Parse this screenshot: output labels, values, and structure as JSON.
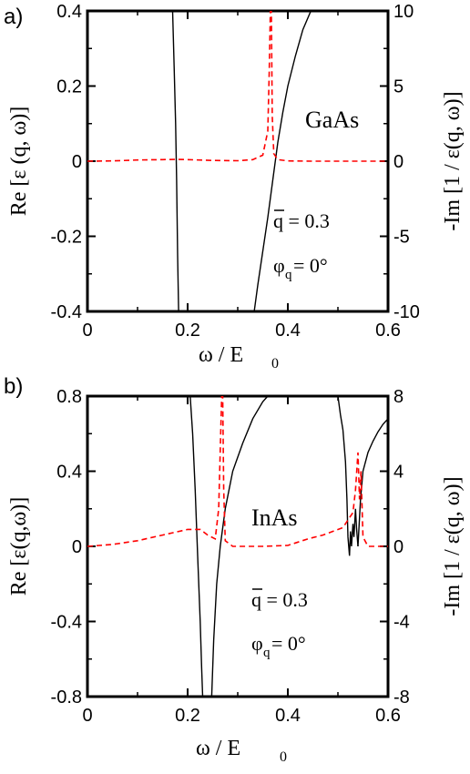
{
  "chart_data": [
    {
      "type": "line",
      "panel_label": "a)",
      "material": "GaAs",
      "xlabel": "ω / E",
      "xlabel_sub": "0",
      "ylabel_left": "Re [ε (q, ω)]",
      "ylabel_right": "-Im [1 / ε(q, ω)]",
      "annotation_q": "q = 0.3",
      "annotation_q_bar": "q",
      "annotation_phi": "φ",
      "annotation_phi_sub": "q",
      "annotation_phi_val": " = 0°",
      "xlim": [
        0,
        0.6
      ],
      "ylim_left": [
        -0.4,
        0.4
      ],
      "ylim_right": [
        -10,
        10
      ],
      "x_ticks": [
        "0",
        "0.2",
        "0.4",
        "0.6"
      ],
      "y_ticks_left": [
        "-0.4",
        "-0.2",
        "0",
        "0.2",
        "0.4"
      ],
      "y_ticks_right": [
        "-10",
        "-5",
        "0",
        "5",
        "10"
      ],
      "x_tick_values": [
        0,
        0.2,
        0.4,
        0.6
      ],
      "y_tick_values_left": [
        -0.4,
        -0.2,
        0,
        0.2,
        0.4
      ],
      "y_tick_values_right": [
        -10,
        -5,
        0,
        5,
        10
      ],
      "series": [
        {
          "axis": "left",
          "color": "#000000",
          "dashed": false,
          "x": [
            0.17,
            0.173,
            0.176,
            0.178,
            0.18,
            0.182
          ],
          "y": [
            0.4,
            0.25,
            0.1,
            -0.05,
            -0.25,
            -0.4
          ]
        },
        {
          "axis": "left",
          "color": "#000000",
          "dashed": false,
          "x": [
            0.333,
            0.34,
            0.35,
            0.36,
            0.37,
            0.38,
            0.39,
            0.4,
            0.415,
            0.43,
            0.446
          ],
          "y": [
            -0.4,
            -0.33,
            -0.24,
            -0.15,
            -0.05,
            0.05,
            0.13,
            0.2,
            0.28,
            0.35,
            0.4
          ]
        },
        {
          "axis": "right",
          "color": "#ff0000",
          "dashed": true,
          "x": [
            0.0,
            0.05,
            0.1,
            0.15,
            0.18,
            0.2,
            0.25,
            0.3,
            0.33,
            0.35,
            0.36,
            0.363,
            0.365,
            0.367,
            0.369,
            0.372,
            0.38,
            0.4,
            0.45,
            0.5,
            0.55,
            0.6
          ],
          "y": [
            0.0,
            0.02,
            0.08,
            0.1,
            0.12,
            0.1,
            0.05,
            0.03,
            0.1,
            0.4,
            2.0,
            6.0,
            10.0,
            10.0,
            3.0,
            0.5,
            0.1,
            0.02,
            0.0,
            0.0,
            0.0,
            0.0
          ]
        }
      ]
    },
    {
      "type": "line",
      "panel_label": "b)",
      "material": "InAs",
      "xlabel": "ω  / E",
      "xlabel_sub": "0",
      "ylabel_left": "Re [ε(q,ω)]",
      "ylabel_right": "-Im [1 / ε(q, ω)]",
      "annotation_q": "q = 0.3",
      "annotation_q_bar": "q",
      "annotation_phi": "φ",
      "annotation_phi_sub": "q",
      "annotation_phi_val": " = 0°",
      "xlim": [
        0,
        0.6
      ],
      "ylim_left": [
        -0.8,
        0.8
      ],
      "ylim_right": [
        -8,
        8
      ],
      "x_ticks": [
        "0",
        "0.2",
        "0.4",
        "0.6"
      ],
      "y_ticks_left": [
        "-0.8",
        "-0.4",
        "0",
        "0.4",
        "0.8"
      ],
      "y_ticks_right": [
        "-8",
        "-4",
        "0",
        "4",
        "8"
      ],
      "x_tick_values": [
        0,
        0.2,
        0.4,
        0.6
      ],
      "y_tick_values_left": [
        -0.8,
        -0.4,
        0,
        0.4,
        0.8
      ],
      "y_tick_values_right": [
        -8,
        -4,
        0,
        4,
        8
      ],
      "series": [
        {
          "axis": "left",
          "color": "#000000",
          "dashed": false,
          "x": [
            0.205,
            0.21,
            0.215,
            0.22,
            0.225,
            0.228,
            0.23
          ],
          "y": [
            0.8,
            0.6,
            0.3,
            -0.05,
            -0.4,
            -0.65,
            -0.8
          ]
        },
        {
          "axis": "left",
          "color": "#000000",
          "dashed": false,
          "x": [
            0.248,
            0.252,
            0.258,
            0.265,
            0.275,
            0.29,
            0.31,
            0.33,
            0.35,
            0.36
          ],
          "y": [
            -0.8,
            -0.5,
            -0.2,
            0.0,
            0.2,
            0.4,
            0.55,
            0.68,
            0.77,
            0.8
          ]
        },
        {
          "axis": "left",
          "color": "#000000",
          "dashed": false,
          "x": [
            0.5,
            0.505,
            0.51,
            0.515,
            0.518,
            0.52,
            0.523,
            0.525,
            0.527,
            0.53,
            0.532,
            0.535,
            0.537,
            0.54
          ],
          "y": [
            0.8,
            0.7,
            0.62,
            0.45,
            0.25,
            0.05,
            -0.05,
            0.08,
            0.0,
            0.12,
            0.05,
            0.2,
            0.1,
            0.0
          ]
        },
        {
          "axis": "left",
          "color": "#000000",
          "dashed": false,
          "x": [
            0.54,
            0.545,
            0.55,
            0.56,
            0.57,
            0.58,
            0.59,
            0.6
          ],
          "y": [
            0.0,
            0.25,
            0.4,
            0.5,
            0.56,
            0.61,
            0.65,
            0.68
          ]
        },
        {
          "axis": "right",
          "color": "#ff0000",
          "dashed": true,
          "x": [
            0.0,
            0.05,
            0.1,
            0.15,
            0.2,
            0.225,
            0.24,
            0.255,
            0.262,
            0.266,
            0.268,
            0.27,
            0.272,
            0.275,
            0.29,
            0.35,
            0.4,
            0.44,
            0.47,
            0.49,
            0.51,
            0.52,
            0.53,
            0.535,
            0.54,
            0.543,
            0.546,
            0.55,
            0.56,
            0.6
          ],
          "y": [
            0.0,
            0.1,
            0.3,
            0.6,
            0.9,
            0.9,
            0.6,
            0.4,
            2.0,
            6.0,
            8.0,
            8.0,
            3.0,
            0.3,
            0.0,
            0.0,
            0.05,
            0.4,
            0.6,
            0.8,
            1.0,
            1.4,
            1.8,
            3.0,
            5.0,
            2.5,
            4.0,
            0.5,
            0.0,
            0.0
          ]
        }
      ]
    }
  ]
}
